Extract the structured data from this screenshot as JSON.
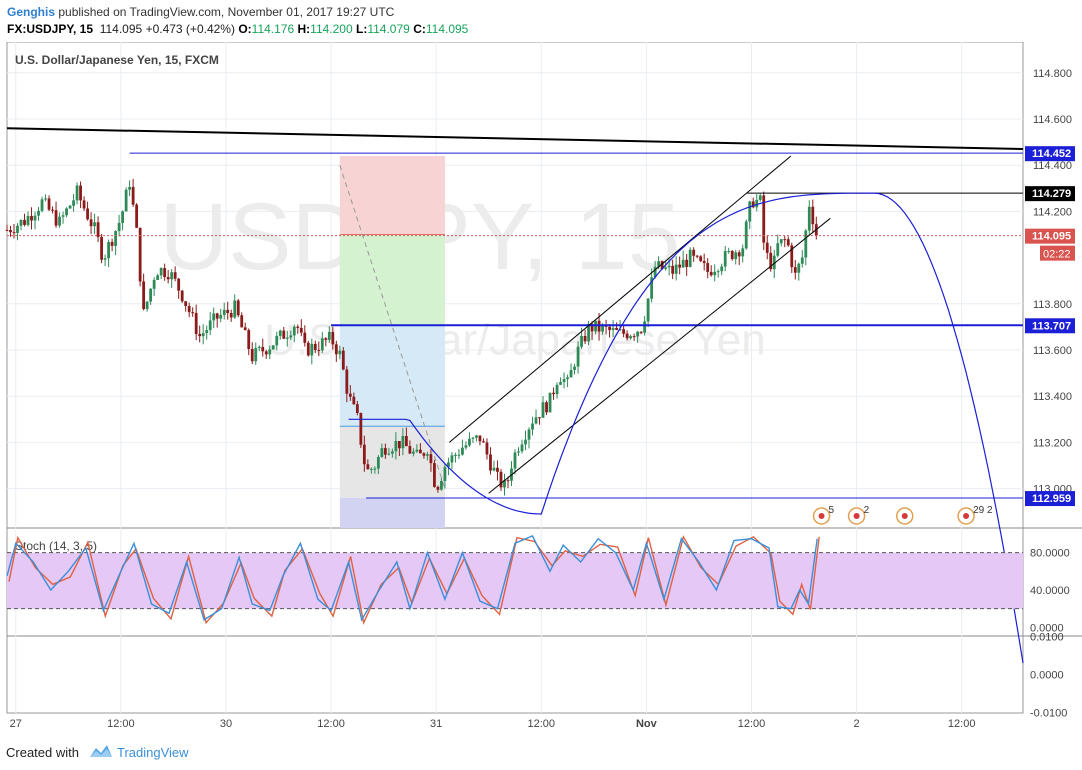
{
  "header": {
    "author": "Genghis",
    "published": "published on TradingView.com, November 01, 2017 19:27 UTC",
    "symbol": "FX:USDJPY, 15",
    "last": "114.095",
    "change": "+0.473 (+0.42%)",
    "o_label": "O:",
    "o_value": "114.176",
    "h_label": "H:",
    "h_value": "114.200",
    "l_label": "L:",
    "l_value": "114.079",
    "c_label": "C:",
    "c_value": "114.095"
  },
  "footer": {
    "created_with": "Created with",
    "brand": "TradingView"
  },
  "colors": {
    "up": "#2e8b57",
    "down": "#8b1a1a",
    "stoch_k": "#3a8fd9",
    "stoch_d": "#e06040",
    "accent": "#1b1fd6",
    "stoch_band": "#e5c8f6"
  },
  "chart_data": {
    "type": "candlestick",
    "title": "U.S. Dollar/Japanese Yen, 15, FXCM",
    "watermark_symbol": "USDJPY, 15",
    "watermark_name": "U.S. Dollar/Japanese Yen",
    "ylim": [
      112.89,
      114.89
    ],
    "y_ticks": [
      {
        "v": 114.8,
        "label": "114.800"
      },
      {
        "v": 114.6,
        "label": "114.600"
      },
      {
        "v": 114.4,
        "label": "114.400"
      },
      {
        "v": 114.2,
        "label": "114.200"
      },
      {
        "v": 113.8,
        "label": "113.800"
      },
      {
        "v": 113.6,
        "label": "113.600"
      },
      {
        "v": 113.4,
        "label": "113.400"
      },
      {
        "v": 113.2,
        "label": "113.200"
      },
      {
        "v": 113.0,
        "label": "113.000"
      }
    ],
    "price_labels": [
      {
        "v": 114.452,
        "label": "114.452",
        "style": "blue"
      },
      {
        "v": 114.279,
        "label": "114.279",
        "style": "black"
      },
      {
        "v": 114.095,
        "label": "114.095",
        "style": "red"
      },
      {
        "v": 113.707,
        "label": "113.707",
        "style": "blue"
      },
      {
        "v": 112.959,
        "label": "112.959",
        "style": "blue"
      }
    ],
    "countdown": "02:22",
    "x_range": [
      0,
      232
    ],
    "x_ticks": [
      {
        "x": 2,
        "label": "27"
      },
      {
        "x": 26,
        "label": "12:00"
      },
      {
        "x": 50,
        "label": "30"
      },
      {
        "x": 74,
        "label": "12:00"
      },
      {
        "x": 98,
        "label": "31"
      },
      {
        "x": 122,
        "label": "12:00"
      },
      {
        "x": 146,
        "label": "Nov"
      },
      {
        "x": 170,
        "label": "12:00"
      },
      {
        "x": 194,
        "label": "2"
      },
      {
        "x": 218,
        "label": "12:00"
      }
    ],
    "close_path": [
      [
        0,
        114.12
      ],
      [
        4,
        114.16
      ],
      [
        8,
        114.24
      ],
      [
        12,
        114.15
      ],
      [
        16,
        114.28
      ],
      [
        20,
        114.12
      ],
      [
        22,
        114.0
      ],
      [
        26,
        114.17
      ],
      [
        28,
        114.33
      ],
      [
        30,
        114.05
      ],
      [
        31,
        113.74
      ],
      [
        34,
        113.95
      ],
      [
        37,
        113.94
      ],
      [
        40,
        113.84
      ],
      [
        44,
        113.66
      ],
      [
        48,
        113.74
      ],
      [
        52,
        113.78
      ],
      [
        56,
        113.57
      ],
      [
        60,
        113.62
      ],
      [
        64,
        113.68
      ],
      [
        66,
        113.72
      ],
      [
        68,
        113.6
      ],
      [
        71,
        113.62
      ],
      [
        74,
        113.65
      ],
      [
        76,
        113.58
      ],
      [
        78,
        113.4
      ],
      [
        80,
        113.3
      ],
      [
        82,
        113.07
      ],
      [
        84,
        113.1
      ],
      [
        86,
        113.18
      ],
      [
        90,
        113.2
      ],
      [
        94,
        113.13
      ],
      [
        96,
        113.18
      ],
      [
        98,
        113.0
      ],
      [
        100,
        113.1
      ],
      [
        104,
        113.18
      ],
      [
        108,
        113.22
      ],
      [
        112,
        113.04
      ],
      [
        114,
        113.0
      ],
      [
        115,
        113.1
      ],
      [
        117,
        113.2
      ],
      [
        120,
        113.3
      ],
      [
        124,
        113.38
      ],
      [
        126,
        113.5
      ],
      [
        128,
        113.45
      ],
      [
        130,
        113.58
      ],
      [
        133,
        113.7
      ],
      [
        136,
        113.69
      ],
      [
        140,
        113.67
      ],
      [
        143,
        113.68
      ],
      [
        145,
        113.7
      ],
      [
        148,
        113.96
      ],
      [
        152,
        113.94
      ],
      [
        156,
        114.0
      ],
      [
        160,
        113.94
      ],
      [
        164,
        114.0
      ],
      [
        168,
        114.05
      ],
      [
        170,
        114.25
      ],
      [
        172,
        114.24
      ],
      [
        173,
        114.02
      ],
      [
        175,
        113.96
      ],
      [
        176,
        114.05
      ],
      [
        178,
        114.08
      ],
      [
        180,
        113.92
      ],
      [
        182,
        114.02
      ],
      [
        183,
        114.25
      ],
      [
        185,
        114.095
      ]
    ],
    "drawings": {
      "trendline_long": [
        [
          0,
          114.56
        ],
        [
          232,
          114.47
        ]
      ],
      "h_114452": [
        [
          28,
          114.452
        ],
        [
          232,
          114.452
        ]
      ],
      "h_114279": [
        [
          169,
          114.279
        ],
        [
          232,
          114.279
        ]
      ],
      "h_113707": [
        [
          74,
          113.707
        ],
        [
          232,
          113.707
        ]
      ],
      "h_112959": [
        [
          82,
          112.959
        ],
        [
          232,
          112.959
        ]
      ],
      "h_dotted_last": [
        [
          0,
          114.095
        ],
        [
          232,
          114.095
        ]
      ],
      "channel_upper": [
        [
          101,
          113.2
        ],
        [
          179,
          114.44
        ]
      ],
      "channel_lower": [
        [
          110,
          112.98
        ],
        [
          188,
          114.17
        ]
      ],
      "parabola": {
        "x_start": 78,
        "vertex_x": 122,
        "vertex_y": 112.89,
        "second_vertex_x": 198,
        "second_vertex_y": 114.279,
        "x_end": 232
      },
      "position_box": {
        "x0": 76,
        "x1": 100,
        "entry": 113.707,
        "stop": 114.44,
        "target": 112.96,
        "mid_red": 114.1,
        "mid_blue": 113.27
      },
      "dashed_arrow": [
        [
          76,
          114.4
        ],
        [
          100,
          113.0
        ]
      ]
    },
    "events": [
      {
        "x": 186,
        "count": "5"
      },
      {
        "x": 194,
        "count": "2"
      },
      {
        "x": 205,
        "count": ""
      },
      {
        "x": 219,
        "count": "29 2"
      }
    ],
    "stochastic": {
      "name": "Stoch (14, 3, 5)",
      "ylim": [
        -5,
        100
      ],
      "upper_band": 80,
      "lower_band": 20,
      "tick_labels": [
        {
          "v": 80,
          "label": "80.0000"
        },
        {
          "v": 40,
          "label": "40.0000"
        },
        {
          "v": 0,
          "label": "0.0000"
        }
      ],
      "k_path": [
        [
          0,
          55
        ],
        [
          2,
          90
        ],
        [
          6,
          70
        ],
        [
          10,
          40
        ],
        [
          14,
          60
        ],
        [
          18,
          85
        ],
        [
          22,
          18
        ],
        [
          26,
          60
        ],
        [
          29,
          90
        ],
        [
          33,
          25
        ],
        [
          37,
          15
        ],
        [
          41,
          70
        ],
        [
          45,
          8
        ],
        [
          49,
          20
        ],
        [
          53,
          75
        ],
        [
          56,
          25
        ],
        [
          60,
          18
        ],
        [
          63,
          55
        ],
        [
          67,
          90
        ],
        [
          71,
          30
        ],
        [
          74,
          18
        ],
        [
          78,
          70
        ],
        [
          81,
          8
        ],
        [
          85,
          40
        ],
        [
          89,
          70
        ],
        [
          92,
          20
        ],
        [
          96,
          80
        ],
        [
          100,
          30
        ],
        [
          104,
          80
        ],
        [
          108,
          28
        ],
        [
          112,
          20
        ],
        [
          116,
          90
        ],
        [
          120,
          98
        ],
        [
          124,
          60
        ],
        [
          127,
          88
        ],
        [
          131,
          70
        ],
        [
          135,
          95
        ],
        [
          139,
          80
        ],
        [
          143,
          40
        ],
        [
          146,
          90
        ],
        [
          150,
          30
        ],
        [
          154,
          95
        ],
        [
          158,
          70
        ],
        [
          162,
          40
        ],
        [
          166,
          93
        ],
        [
          170,
          95
        ],
        [
          174,
          85
        ],
        [
          176,
          22
        ],
        [
          179,
          20
        ],
        [
          181,
          40
        ],
        [
          183,
          25
        ],
        [
          185,
          95
        ]
      ]
    },
    "sub_pane": {
      "tick_labels": [
        {
          "v": 0.01,
          "label": "0.0100"
        },
        {
          "v": 0,
          "label": "0.0000"
        },
        {
          "v": -0.01,
          "label": "-0.0100"
        }
      ]
    }
  }
}
